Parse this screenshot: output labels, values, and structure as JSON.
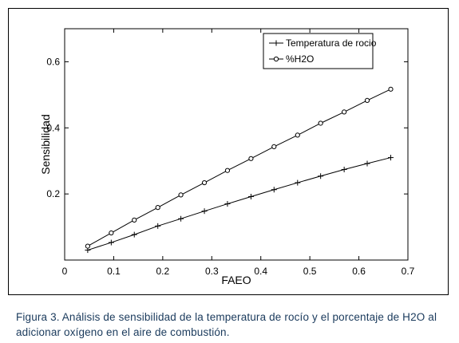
{
  "chart_data": {
    "type": "line",
    "xlabel": "FAEO",
    "ylabel": "Sensibilidad",
    "xlim": [
      0,
      0.7
    ],
    "ylim": [
      0,
      0.7
    ],
    "xticks": [
      0,
      0.1,
      0.2,
      0.3,
      0.4,
      0.5,
      0.6,
      0.7
    ],
    "xtick_labels": [
      "0",
      "0.1",
      "0.2",
      "0.3",
      "0.4",
      "0.5",
      "0.6",
      "0.7"
    ],
    "yticks": [
      0.2,
      0.4,
      0.6
    ],
    "ytick_labels": [
      "0.2",
      "0.4",
      "0.6"
    ],
    "grid": false,
    "legend_position": "top-right",
    "x": [
      0.047,
      0.095,
      0.142,
      0.19,
      0.237,
      0.285,
      0.332,
      0.38,
      0.427,
      0.475,
      0.522,
      0.57,
      0.617,
      0.665
    ],
    "series": [
      {
        "name": "Temperatura de rocio",
        "marker": "plus",
        "values": [
          0.03,
          0.053,
          0.077,
          0.103,
          0.125,
          0.148,
          0.17,
          0.192,
          0.213,
          0.234,
          0.254,
          0.274,
          0.292,
          0.31
        ]
      },
      {
        "name": "%H2O",
        "marker": "circle",
        "values": [
          0.042,
          0.082,
          0.121,
          0.159,
          0.197,
          0.234,
          0.271,
          0.307,
          0.343,
          0.378,
          0.414,
          0.448,
          0.483,
          0.517
        ]
      }
    ],
    "line_color": "#000000"
  },
  "caption": {
    "text": "Figura 3. Análisis de sensibilidad de la temperatura de rocío y el porcentaje de H2O al adicionar oxígeno en el aire de combustión."
  }
}
